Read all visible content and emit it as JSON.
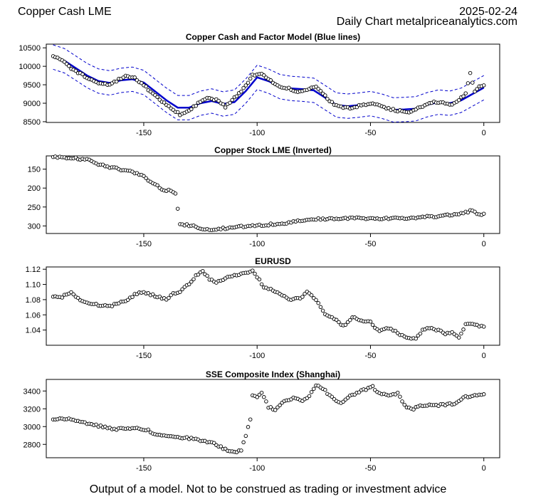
{
  "header": {
    "title": "Copper Cash LME",
    "date": "2025-02-24",
    "subtitle": "Daily Chart metalpriceanalytics.com"
  },
  "footer": "Output of a model. Not to be construed as trading or investment advice",
  "chart_data": [
    {
      "type": "scatter",
      "title": "Copper Cash and Factor Model (Blue lines)",
      "xlabel": "",
      "ylabel": "",
      "xlim": [
        -193,
        7
      ],
      "ylim": [
        8480,
        10600
      ],
      "xticks": [
        -150,
        -100,
        -50,
        0
      ],
      "yticks": [
        8500,
        9000,
        9500,
        10000,
        10500
      ],
      "colors": {
        "points": "#000000",
        "model": "#0000cc",
        "band": "#0000cc"
      },
      "anchors": [
        [
          -190,
          10300
        ],
        [
          -186,
          10150
        ],
        [
          -182,
          9950
        ],
        [
          -178,
          9800
        ],
        [
          -174,
          9650
        ],
        [
          -170,
          9550
        ],
        [
          -166,
          9500
        ],
        [
          -162,
          9600
        ],
        [
          -158,
          9750
        ],
        [
          -154,
          9680
        ],
        [
          -150,
          9500
        ],
        [
          -146,
          9250
        ],
        [
          -142,
          9050
        ],
        [
          -138,
          8850
        ],
        [
          -134,
          8700
        ],
        [
          -130,
          8800
        ],
        [
          -126,
          9000
        ],
        [
          -122,
          9150
        ],
        [
          -118,
          9100
        ],
        [
          -114,
          8900
        ],
        [
          -110,
          9150
        ],
        [
          -106,
          9400
        ],
        [
          -102,
          9750
        ],
        [
          -98,
          9800
        ],
        [
          -94,
          9600
        ],
        [
          -90,
          9450
        ],
        [
          -86,
          9400
        ],
        [
          -82,
          9300
        ],
        [
          -78,
          9350
        ],
        [
          -74,
          9450
        ],
        [
          -70,
          9200
        ],
        [
          -66,
          8950
        ],
        [
          -62,
          8900
        ],
        [
          -58,
          8850
        ],
        [
          -54,
          8950
        ],
        [
          -50,
          9000
        ],
        [
          -46,
          8950
        ],
        [
          -42,
          8850
        ],
        [
          -38,
          8800
        ],
        [
          -34,
          8750
        ],
        [
          -30,
          8850
        ],
        [
          -26,
          8950
        ],
        [
          -22,
          9050
        ],
        [
          -18,
          9000
        ],
        [
          -14,
          8950
        ],
        [
          -10,
          9150
        ],
        [
          -8,
          9250
        ],
        [
          -6,
          9800
        ],
        [
          -4,
          9300
        ],
        [
          -2,
          9450
        ],
        [
          0,
          9500
        ]
      ],
      "model": [
        [
          -190,
          10250
        ],
        [
          -185,
          10150
        ],
        [
          -180,
          9950
        ],
        [
          -175,
          9750
        ],
        [
          -170,
          9600
        ],
        [
          -165,
          9550
        ],
        [
          -160,
          9620
        ],
        [
          -155,
          9650
        ],
        [
          -150,
          9560
        ],
        [
          -145,
          9320
        ],
        [
          -140,
          9080
        ],
        [
          -135,
          8880
        ],
        [
          -130,
          8880
        ],
        [
          -125,
          9000
        ],
        [
          -120,
          9060
        ],
        [
          -115,
          8980
        ],
        [
          -110,
          9030
        ],
        [
          -105,
          9330
        ],
        [
          -100,
          9700
        ],
        [
          -95,
          9600
        ],
        [
          -90,
          9450
        ],
        [
          -85,
          9400
        ],
        [
          -80,
          9380
        ],
        [
          -75,
          9350
        ],
        [
          -70,
          9150
        ],
        [
          -65,
          8950
        ],
        [
          -60,
          8920
        ],
        [
          -55,
          8950
        ],
        [
          -50,
          8990
        ],
        [
          -45,
          8920
        ],
        [
          -40,
          8820
        ],
        [
          -35,
          8830
        ],
        [
          -30,
          8850
        ],
        [
          -25,
          8960
        ],
        [
          -20,
          9030
        ],
        [
          -15,
          9000
        ],
        [
          -10,
          9080
        ],
        [
          -5,
          9250
        ],
        [
          0,
          9420
        ]
      ],
      "band_width": 330
    },
    {
      "type": "scatter",
      "title": "Copper Stock LME (Inverted)",
      "xlabel": "",
      "ylabel": "",
      "xlim": [
        -193,
        7
      ],
      "ylim": [
        320,
        115
      ],
      "xticks": [
        -150,
        -100,
        -50,
        0
      ],
      "yticks": [
        150,
        200,
        250,
        300
      ],
      "colors": {
        "points": "#000000"
      },
      "anchors": [
        [
          -190,
          118
        ],
        [
          -182,
          120
        ],
        [
          -175,
          125
        ],
        [
          -172,
          131
        ],
        [
          -170,
          137
        ],
        [
          -165,
          145
        ],
        [
          -158,
          153
        ],
        [
          -152,
          163
        ],
        [
          -148,
          178
        ],
        [
          -145,
          190
        ],
        [
          -142,
          203
        ],
        [
          -138,
          208
        ],
        [
          -136,
          215
        ],
        [
          -134,
          295
        ],
        [
          -132,
          297
        ],
        [
          -128,
          300
        ],
        [
          -126,
          307
        ],
        [
          -120,
          310
        ],
        [
          -112,
          305
        ],
        [
          -104,
          300
        ],
        [
          -96,
          297
        ],
        [
          -90,
          294
        ],
        [
          -84,
          289
        ],
        [
          -78,
          284
        ],
        [
          -70,
          281
        ],
        [
          -60,
          280
        ],
        [
          -50,
          280
        ],
        [
          -40,
          280
        ],
        [
          -30,
          278
        ],
        [
          -20,
          274
        ],
        [
          -12,
          270
        ],
        [
          -7,
          263
        ],
        [
          -5,
          258
        ],
        [
          -4,
          264
        ],
        [
          -3,
          270
        ],
        [
          0,
          270
        ]
      ]
    },
    {
      "type": "scatter",
      "title": "EURUSD",
      "xlabel": "",
      "ylabel": "",
      "xlim": [
        -193,
        7
      ],
      "ylim": [
        1.02,
        1.123
      ],
      "xticks": [
        -150,
        -100,
        -50,
        0
      ],
      "yticks": [
        1.04,
        1.06,
        1.08,
        1.1,
        1.12
      ],
      "colors": {
        "points": "#000000"
      },
      "anchors": [
        [
          -190,
          1.085
        ],
        [
          -186,
          1.084
        ],
        [
          -182,
          1.09
        ],
        [
          -178,
          1.079
        ],
        [
          -172,
          1.074
        ],
        [
          -165,
          1.071
        ],
        [
          -158,
          1.079
        ],
        [
          -152,
          1.09
        ],
        [
          -148,
          1.088
        ],
        [
          -144,
          1.084
        ],
        [
          -140,
          1.08
        ],
        [
          -137,
          1.088
        ],
        [
          -134,
          1.091
        ],
        [
          -130,
          1.1
        ],
        [
          -127,
          1.112
        ],
        [
          -124,
          1.118
        ],
        [
          -121,
          1.107
        ],
        [
          -118,
          1.103
        ],
        [
          -114,
          1.108
        ],
        [
          -110,
          1.112
        ],
        [
          -105,
          1.115
        ],
        [
          -102,
          1.118
        ],
        [
          -100,
          1.11
        ],
        [
          -97,
          1.097
        ],
        [
          -93,
          1.092
        ],
        [
          -89,
          1.085
        ],
        [
          -85,
          1.08
        ],
        [
          -81,
          1.082
        ],
        [
          -78,
          1.09
        ],
        [
          -75,
          1.083
        ],
        [
          -73,
          1.075
        ],
        [
          -70,
          1.062
        ],
        [
          -66,
          1.055
        ],
        [
          -62,
          1.045
        ],
        [
          -58,
          1.057
        ],
        [
          -54,
          1.052
        ],
        [
          -50,
          1.05
        ],
        [
          -46,
          1.038
        ],
        [
          -42,
          1.043
        ],
        [
          -38,
          1.036
        ],
        [
          -34,
          1.03
        ],
        [
          -30,
          1.028
        ],
        [
          -27,
          1.04
        ],
        [
          -24,
          1.042
        ],
        [
          -20,
          1.04
        ],
        [
          -17,
          1.034
        ],
        [
          -14,
          1.038
        ],
        [
          -11,
          1.03
        ],
        [
          -8,
          1.047
        ],
        [
          -6,
          1.048
        ],
        [
          -4,
          1.048
        ],
        [
          -2,
          1.045
        ],
        [
          0,
          1.045
        ]
      ]
    },
    {
      "type": "scatter",
      "title": "SSE Composite Index (Shanghai)",
      "xlabel": "",
      "ylabel": "",
      "xlim": [
        -193,
        7
      ],
      "ylim": [
        2650,
        3530
      ],
      "xticks": [
        -150,
        -100,
        -50,
        0
      ],
      "yticks": [
        2800,
        3000,
        3200,
        3400
      ],
      "colors": {
        "points": "#000000"
      },
      "anchors": [
        [
          -190,
          3090
        ],
        [
          -184,
          3090
        ],
        [
          -178,
          3050
        ],
        [
          -172,
          3020
        ],
        [
          -166,
          2985
        ],
        [
          -162,
          2970
        ],
        [
          -158,
          2980
        ],
        [
          -152,
          2975
        ],
        [
          -148,
          2960
        ],
        [
          -144,
          2900
        ],
        [
          -140,
          2890
        ],
        [
          -136,
          2880
        ],
        [
          -130,
          2870
        ],
        [
          -126,
          2850
        ],
        [
          -120,
          2820
        ],
        [
          -116,
          2770
        ],
        [
          -113,
          2730
        ],
        [
          -110,
          2710
        ],
        [
          -107,
          2740
        ],
        [
          -105,
          2900
        ],
        [
          -104,
          3000
        ],
        [
          -103,
          3080
        ],
        [
          -102,
          3340
        ],
        [
          -100,
          3330
        ],
        [
          -98,
          3390
        ],
        [
          -95,
          3220
        ],
        [
          -92,
          3190
        ],
        [
          -88,
          3280
        ],
        [
          -84,
          3320
        ],
        [
          -80,
          3290
        ],
        [
          -77,
          3350
        ],
        [
          -74,
          3460
        ],
        [
          -71,
          3430
        ],
        [
          -68,
          3350
        ],
        [
          -66,
          3310
        ],
        [
          -63,
          3260
        ],
        [
          -60,
          3330
        ],
        [
          -56,
          3380
        ],
        [
          -52,
          3420
        ],
        [
          -49,
          3450
        ],
        [
          -47,
          3380
        ],
        [
          -44,
          3370
        ],
        [
          -41,
          3350
        ],
        [
          -38,
          3380
        ],
        [
          -36,
          3280
        ],
        [
          -34,
          3220
        ],
        [
          -31,
          3200
        ],
        [
          -28,
          3240
        ],
        [
          -24,
          3240
        ],
        [
          -20,
          3240
        ],
        [
          -16,
          3250
        ],
        [
          -12,
          3260
        ],
        [
          -9,
          3330
        ],
        [
          -6,
          3340
        ],
        [
          -3,
          3360
        ],
        [
          0,
          3370
        ]
      ]
    }
  ]
}
